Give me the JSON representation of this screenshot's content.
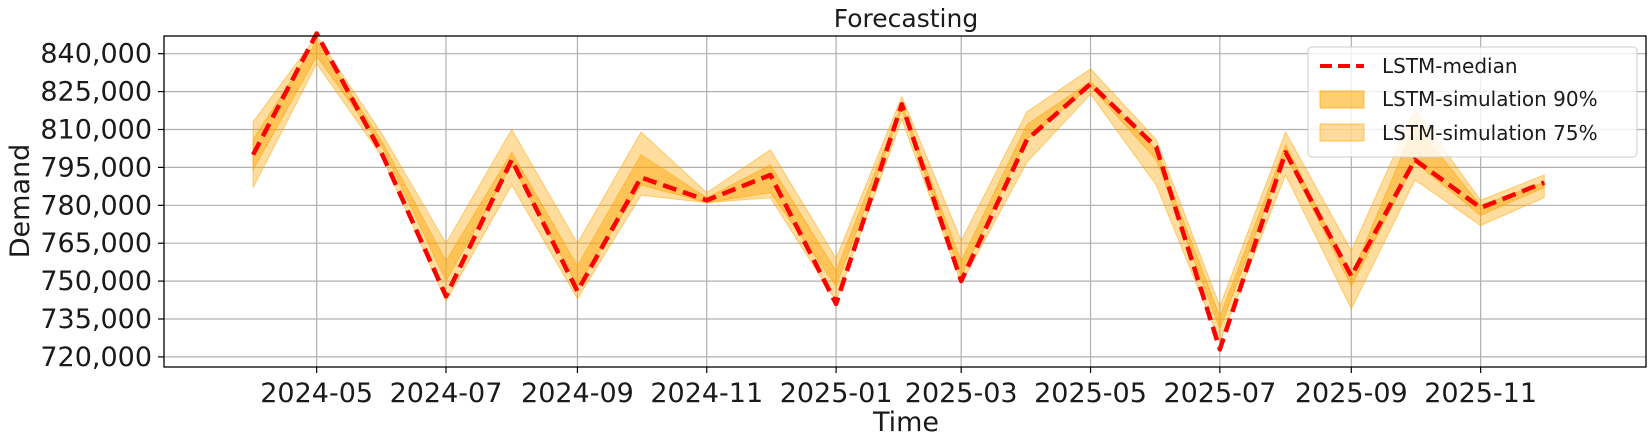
{
  "chart_data": {
    "type": "line",
    "title": "Forecasting",
    "xlabel": "Time",
    "ylabel": "Demand",
    "ylim": [
      716000,
      847000
    ],
    "xlim": [
      "2024-02-19",
      "2026-01-18"
    ],
    "yticks": [
      720000,
      735000,
      750000,
      765000,
      780000,
      795000,
      810000,
      825000,
      840000
    ],
    "ytick_labels": [
      "720,000",
      "735,000",
      "750,000",
      "765,000",
      "780,000",
      "795,000",
      "810,000",
      "825,000",
      "840,000"
    ],
    "xticks": [
      "2024-05-01",
      "2024-07-01",
      "2024-09-01",
      "2024-11-01",
      "2025-01-01",
      "2025-03-01",
      "2025-05-01",
      "2025-07-01",
      "2025-09-01",
      "2025-11-01"
    ],
    "xtick_labels": [
      "2024-05",
      "2024-07",
      "2024-09",
      "2024-11",
      "2025-01",
      "2025-03",
      "2025-05",
      "2025-07",
      "2025-09",
      "2025-11"
    ],
    "grid": true,
    "legend_position": "top-right",
    "x": [
      "2024-04-01",
      "2024-05-01",
      "2024-06-01",
      "2024-07-01",
      "2024-08-01",
      "2024-09-01",
      "2024-10-01",
      "2024-11-01",
      "2024-12-01",
      "2025-01-01",
      "2025-02-01",
      "2025-03-01",
      "2025-04-01",
      "2025-05-01",
      "2025-06-01",
      "2025-07-01",
      "2025-08-01",
      "2025-09-01",
      "2025-10-01",
      "2025-11-01",
      "2025-12-01"
    ],
    "series": [
      {
        "name": "LSTM-median",
        "style": "dashed",
        "color": "#ff0000",
        "values": [
          800000,
          848000,
          800000,
          744000,
          798000,
          746000,
          791000,
          782000,
          792000,
          741000,
          820000,
          750000,
          806000,
          828000,
          803000,
          723000,
          801000,
          752000,
          798000,
          779000,
          789000
        ]
      },
      {
        "name": "LSTM-simulation 90%",
        "type": "band",
        "color": "#ffa500",
        "opacity": 0.45,
        "lower": [
          794000,
          839000,
          803000,
          750000,
          796000,
          748000,
          788000,
          781000,
          785000,
          748000,
          818000,
          752000,
          806000,
          827000,
          798000,
          731000,
          800000,
          748000,
          797000,
          776000,
          787000
        ],
        "upper": [
          806000,
          845000,
          805000,
          758000,
          801000,
          756000,
          800000,
          783000,
          796000,
          754000,
          820000,
          758000,
          812000,
          829000,
          802000,
          736000,
          804000,
          752000,
          812000,
          780000,
          789000
        ]
      },
      {
        "name": "LSTM-simulation 75%",
        "type": "band",
        "color": "#ffa500",
        "opacity": 0.38,
        "lower": [
          787000,
          836000,
          799000,
          742000,
          788000,
          743000,
          784000,
          781000,
          783000,
          742000,
          814000,
          749000,
          797000,
          824000,
          788000,
          726000,
          792000,
          739000,
          790000,
          772000,
          783000
        ],
        "upper": [
          813000,
          847000,
          808000,
          765000,
          810000,
          765000,
          809000,
          785000,
          802000,
          759000,
          823000,
          766000,
          817000,
          834000,
          806000,
          740000,
          809000,
          762000,
          818000,
          782000,
          792000
        ]
      }
    ]
  }
}
